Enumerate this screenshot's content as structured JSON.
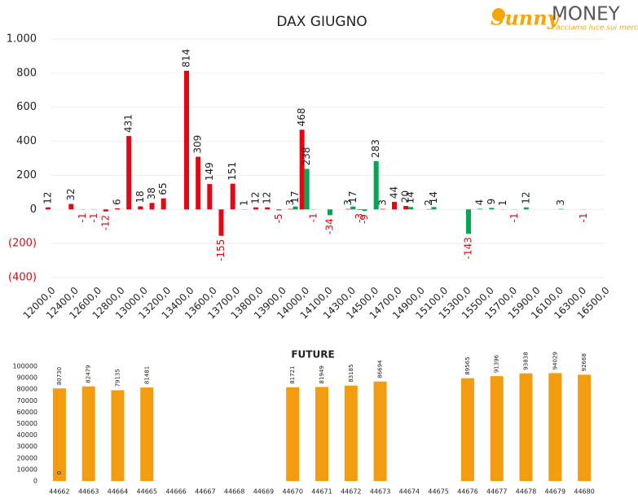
{
  "logo": {
    "brand": "Sunny",
    "name": "MONEY",
    "tagline": "Facciamo luce sui mercati"
  },
  "chart_data": [
    {
      "type": "bar",
      "title": "DAX GIUGNO",
      "categories": [
        "12000,0",
        null,
        "12400,0",
        null,
        "12600,0",
        null,
        "12800,0",
        null,
        "13000,0",
        null,
        "13200,0",
        null,
        "13400,0",
        null,
        "13600,0",
        null,
        "13700,0",
        null,
        "13800,0",
        null,
        "13900,0",
        null,
        "14000,0",
        null,
        "14100,0",
        null,
        "14300,0",
        null,
        "14500,0",
        null,
        "14700,0",
        null,
        "14900,0",
        null,
        "15100,0",
        null,
        "15300,0",
        null,
        "15500,0",
        null,
        "15700,0",
        null,
        "15900,0",
        null,
        "16100,0",
        null,
        "16300,0",
        null,
        "16500,0"
      ],
      "series": [
        {
          "color": "#e30613",
          "values": [
            12,
            null,
            32,
            -1,
            -1,
            -12,
            6,
            431,
            18,
            38,
            65,
            null,
            814,
            309,
            149,
            -155,
            151,
            1,
            12,
            12,
            -5,
            3,
            468,
            -1,
            null,
            null,
            3,
            -3,
            null,
            3,
            44,
            20,
            null,
            2,
            null,
            null,
            null,
            null,
            null,
            null,
            null,
            null,
            null,
            null,
            null,
            null,
            null,
            null,
            null
          ]
        },
        {
          "color": "#00a651",
          "values": [
            null,
            null,
            null,
            null,
            null,
            null,
            null,
            null,
            null,
            null,
            null,
            null,
            null,
            null,
            null,
            null,
            null,
            null,
            null,
            null,
            null,
            17,
            238,
            null,
            -34,
            null,
            17,
            -9,
            283,
            null,
            null,
            14,
            null,
            14,
            null,
            null,
            -143,
            4,
            9,
            1,
            -1,
            12,
            null,
            null,
            3,
            null,
            -1,
            null,
            null
          ]
        }
      ],
      "ylim": [
        -400,
        1000
      ],
      "yticks": [
        {
          "value": -400,
          "label": "(400)"
        },
        {
          "value": -200,
          "label": "(200)"
        },
        0,
        200,
        400,
        600,
        800,
        {
          "value": 1000,
          "label": "1.000"
        }
      ],
      "grid": true
    },
    {
      "type": "bar",
      "title": "FUTURE",
      "categories": [
        "44662",
        "44663",
        "44664",
        "44665",
        "44666",
        "44667",
        "44668",
        "44669",
        "44670",
        "44671",
        "44672",
        "44673",
        "44674",
        "44675",
        "44676",
        "44677",
        "44678",
        "44679",
        "44680"
      ],
      "series": [
        {
          "color": "#f39c0f",
          "values": [
            80730,
            82479,
            79135,
            81481,
            null,
            null,
            null,
            null,
            81721,
            81949,
            83185,
            86694,
            null,
            null,
            89565,
            91396,
            93838,
            94029,
            92668
          ]
        },
        {
          "color": "#f39c0f",
          "values": [
            0,
            null,
            null,
            null,
            null,
            null,
            null,
            null,
            null,
            null,
            null,
            null,
            null,
            null,
            null,
            null,
            null,
            null,
            null
          ]
        }
      ],
      "ylim": [
        0,
        100000
      ],
      "yticks": [
        0,
        10000,
        20000,
        30000,
        40000,
        50000,
        60000,
        70000,
        80000,
        90000,
        100000
      ],
      "grid": false
    }
  ]
}
